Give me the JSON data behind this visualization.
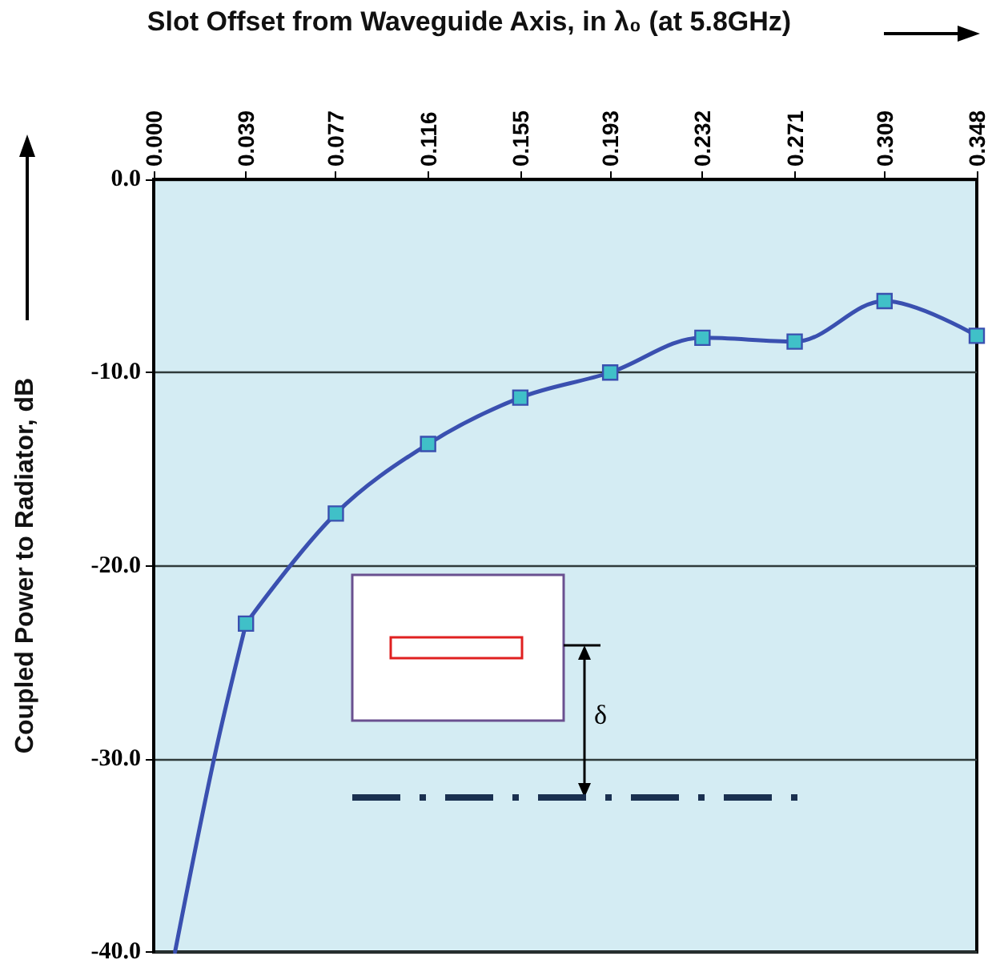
{
  "chart_data": {
    "type": "line",
    "xlabel": "Slot Offset from Waveguide Axis, in λ₀ (at 5.8GHz)",
    "ylabel": "Coupled Power to Radiator, dB",
    "xlim": [
      0,
      0.348
    ],
    "xticks": [
      {
        "value": 0,
        "label": "0.000"
      },
      0.039,
      0.077,
      0.116,
      0.155,
      0.193,
      0.232,
      0.271,
      0.309,
      0.348
    ],
    "ylim": [
      -40,
      0
    ],
    "yticks": [
      {
        "value": -40,
        "label": "-40.0"
      },
      {
        "value": -30,
        "label": "-30.0"
      },
      {
        "value": -20,
        "label": "-20.0"
      },
      {
        "value": -10,
        "label": "-10.0"
      },
      {
        "value": 0,
        "label": "0.0"
      }
    ],
    "grid": "y",
    "annotations": [
      "δ"
    ],
    "series": [
      {
        "color": "#3a50b0",
        "marker": "none",
        "x": [
          0.009,
          0.0255,
          0.039
        ],
        "values": [
          -40,
          -30,
          -23.0
        ]
      },
      {
        "color": "#3a50b0",
        "marker": "square",
        "x": [
          0.039,
          0.077,
          0.116,
          0.155,
          0.193,
          0.232,
          0.271,
          0.309,
          0.348
        ],
        "values": [
          -23.0,
          -17.3,
          -13.7,
          -11.3,
          -10.0,
          -8.2,
          -8.4,
          -6.3,
          -8.1
        ]
      }
    ]
  }
}
